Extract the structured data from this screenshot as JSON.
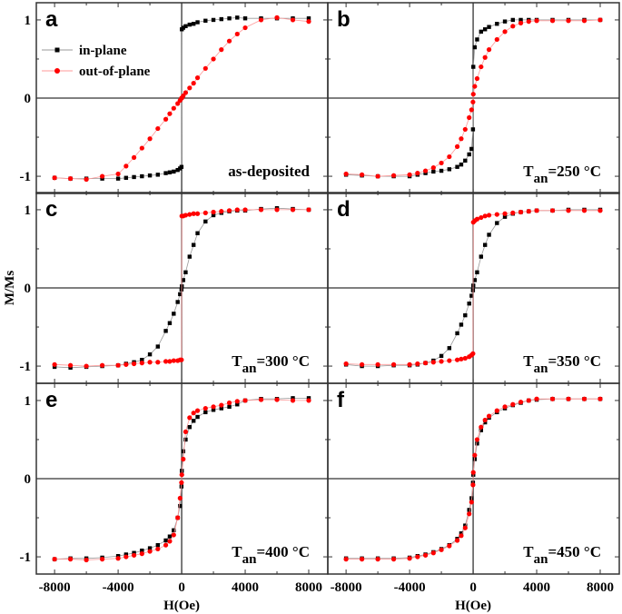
{
  "chart_data": {
    "type": "scatter",
    "layout": "3x2 grid of panels",
    "ylabel": "M/Ms",
    "xlabel": "H(Oe)",
    "xlim": [
      -9150,
      9200
    ],
    "ylim": [
      -1.22,
      1.22
    ],
    "xticks": [
      -8000,
      -4000,
      0,
      4000,
      8000
    ],
    "xtick_labels": [
      "-8000",
      "-4000",
      "0",
      "4000",
      "8000"
    ],
    "yticks": [
      -1,
      0,
      1
    ],
    "ytick_labels": [
      "-1",
      "0",
      "1"
    ],
    "grid": false,
    "zero_lines": true,
    "legend": {
      "placement": "top-left of panel a",
      "entries": [
        "in-plane",
        "out-of-plane"
      ]
    },
    "colors": {
      "in-plane": "#000000",
      "out-of-plane": "#ff0000"
    },
    "markers": {
      "in-plane": "square",
      "out-of-plane": "circle"
    },
    "x": [
      -8000,
      -7000,
      -6000,
      -5000,
      -4000,
      -3500,
      -3000,
      -2500,
      -2000,
      -1500,
      -1000,
      -750,
      -500,
      -250,
      -100,
      -10,
      10,
      100,
      250,
      500,
      750,
      1000,
      1500,
      2000,
      2500,
      3000,
      3500,
      4000,
      5000,
      6000,
      7000,
      8000
    ],
    "panels": [
      {
        "label": "a",
        "annotation": "as-deposited",
        "annotation_sub": "",
        "annotation_tail": "",
        "series": [
          {
            "name": "in-plane",
            "y": [
              -1.02,
              -1.03,
              -1.03,
              -1.03,
              -1.03,
              -1.02,
              -1.01,
              -1.0,
              -0.99,
              -0.98,
              -0.96,
              -0.95,
              -0.94,
              -0.92,
              -0.9,
              -0.88,
              0.88,
              0.9,
              0.92,
              0.94,
              0.95,
              0.97,
              0.99,
              1.0,
              1.01,
              1.02,
              1.03,
              1.02,
              1.02,
              1.02,
              1.02,
              1.02
            ]
          },
          {
            "name": "out-of-plane",
            "y": [
              -1.02,
              -1.03,
              -1.04,
              -1.0,
              -0.97,
              -0.87,
              -0.76,
              -0.64,
              -0.52,
              -0.39,
              -0.27,
              -0.2,
              -0.13,
              -0.07,
              -0.03,
              0.0,
              0.0,
              0.03,
              0.07,
              0.13,
              0.19,
              0.26,
              0.38,
              0.5,
              0.62,
              0.73,
              0.82,
              0.9,
              1.0,
              1.03,
              1.0,
              0.98
            ]
          }
        ]
      },
      {
        "label": "b",
        "annotation": "T",
        "annotation_sub": "an",
        "annotation_tail": "=250 °C",
        "series": [
          {
            "name": "in-plane",
            "y": [
              -0.98,
              -0.99,
              -1.0,
              -1.0,
              -1.0,
              -0.98,
              -0.96,
              -0.94,
              -0.93,
              -0.91,
              -0.88,
              -0.85,
              -0.8,
              -0.72,
              -0.65,
              -0.4,
              0.4,
              0.65,
              0.75,
              0.85,
              0.88,
              0.91,
              0.95,
              0.98,
              1.0,
              1.0,
              1.0,
              1.0,
              1.0,
              1.0,
              1.0,
              1.0
            ]
          },
          {
            "name": "out-of-plane",
            "y": [
              -0.97,
              -0.98,
              -1.0,
              -0.99,
              -0.98,
              -0.96,
              -0.93,
              -0.89,
              -0.83,
              -0.75,
              -0.62,
              -0.52,
              -0.4,
              -0.25,
              -0.15,
              -0.05,
              0.05,
              0.15,
              0.25,
              0.4,
              0.52,
              0.62,
              0.75,
              0.85,
              0.92,
              0.96,
              0.98,
              0.99,
              0.99,
              0.99,
              0.99,
              1.0
            ]
          }
        ]
      },
      {
        "label": "c",
        "annotation": "T",
        "annotation_sub": "an",
        "annotation_tail": "=300 °C",
        "series": [
          {
            "name": "in-plane",
            "y": [
              -1.01,
              -1.02,
              -1.01,
              -1.0,
              -0.99,
              -0.97,
              -0.95,
              -0.92,
              -0.85,
              -0.75,
              -0.55,
              -0.45,
              -0.33,
              -0.18,
              -0.08,
              -0.02,
              0.02,
              0.1,
              0.2,
              0.4,
              0.55,
              0.7,
              0.85,
              0.93,
              0.96,
              0.98,
              0.99,
              0.99,
              1.01,
              1.02,
              1.01,
              1.0
            ]
          },
          {
            "name": "out-of-plane",
            "y": [
              -0.98,
              -0.99,
              -1.0,
              -0.99,
              -0.99,
              -0.98,
              -0.97,
              -0.96,
              -0.95,
              -0.95,
              -0.94,
              -0.94,
              -0.93,
              -0.93,
              -0.92,
              -0.92,
              0.92,
              0.92,
              0.93,
              0.94,
              0.95,
              0.95,
              0.96,
              0.97,
              0.98,
              0.99,
              1.0,
              1.0,
              1.0,
              1.0,
              1.0,
              1.0
            ]
          }
        ]
      },
      {
        "label": "d",
        "annotation": "T",
        "annotation_sub": "an",
        "annotation_tail": "=350 °C",
        "series": [
          {
            "name": "in-plane",
            "y": [
              -0.98,
              -1.0,
              -1.0,
              -0.99,
              -0.99,
              -0.98,
              -0.96,
              -0.93,
              -0.87,
              -0.77,
              -0.58,
              -0.47,
              -0.35,
              -0.2,
              -0.1,
              -0.03,
              0.03,
              0.1,
              0.2,
              0.4,
              0.55,
              0.68,
              0.83,
              0.91,
              0.95,
              0.97,
              0.98,
              0.99,
              0.99,
              1.0,
              1.0,
              1.0
            ]
          },
          {
            "name": "out-of-plane",
            "y": [
              -0.97,
              -0.98,
              -0.98,
              -0.98,
              -0.98,
              -0.97,
              -0.96,
              -0.95,
              -0.94,
              -0.93,
              -0.92,
              -0.91,
              -0.9,
              -0.88,
              -0.86,
              -0.84,
              0.84,
              0.86,
              0.88,
              0.9,
              0.92,
              0.93,
              0.94,
              0.95,
              0.96,
              0.97,
              0.98,
              0.99,
              0.99,
              0.99,
              0.99,
              0.99
            ]
          }
        ]
      },
      {
        "label": "e",
        "annotation": "T",
        "annotation_sub": "an",
        "annotation_tail": "=400 °C",
        "series": [
          {
            "name": "in-plane",
            "y": [
              -1.03,
              -1.02,
              -1.02,
              -1.01,
              -0.99,
              -0.97,
              -0.95,
              -0.92,
              -0.89,
              -0.85,
              -0.79,
              -0.74,
              -0.66,
              -0.5,
              -0.35,
              -0.1,
              0.1,
              0.35,
              0.5,
              0.66,
              0.74,
              0.79,
              0.85,
              0.88,
              0.9,
              0.92,
              0.95,
              1.0,
              1.02,
              1.02,
              1.03,
              1.03
            ]
          },
          {
            "name": "out-of-plane",
            "y": [
              -1.03,
              -1.03,
              -1.04,
              -1.03,
              -1.02,
              -1.0,
              -0.98,
              -0.96,
              -0.93,
              -0.9,
              -0.85,
              -0.8,
              -0.72,
              -0.5,
              -0.25,
              -0.05,
              0.05,
              0.25,
              0.6,
              0.78,
              0.84,
              0.87,
              0.9,
              0.92,
              0.94,
              0.97,
              0.99,
              1.0,
              1.01,
              1.01,
              1.0,
              1.0
            ]
          }
        ]
      },
      {
        "label": "f",
        "annotation": "T",
        "annotation_sub": "an",
        "annotation_tail": "=450 °C",
        "series": [
          {
            "name": "in-plane",
            "y": [
              -1.02,
              -1.02,
              -1.02,
              -1.02,
              -1.01,
              -0.99,
              -0.97,
              -0.94,
              -0.9,
              -0.85,
              -0.77,
              -0.7,
              -0.6,
              -0.4,
              -0.25,
              -0.05,
              0.05,
              0.25,
              0.45,
              0.62,
              0.72,
              0.78,
              0.85,
              0.9,
              0.94,
              0.97,
              1.0,
              1.01,
              1.02,
              1.02,
              1.02,
              1.02
            ]
          },
          {
            "name": "out-of-plane",
            "y": [
              -1.03,
              -1.03,
              -1.03,
              -1.03,
              -1.02,
              -1.0,
              -0.98,
              -0.95,
              -0.91,
              -0.86,
              -0.79,
              -0.73,
              -0.63,
              -0.45,
              -0.3,
              -0.08,
              0.08,
              0.3,
              0.5,
              0.66,
              0.75,
              0.8,
              0.87,
              0.92,
              0.95,
              0.98,
              1.0,
              1.02,
              1.02,
              1.02,
              1.02,
              1.02
            ]
          }
        ]
      }
    ]
  }
}
